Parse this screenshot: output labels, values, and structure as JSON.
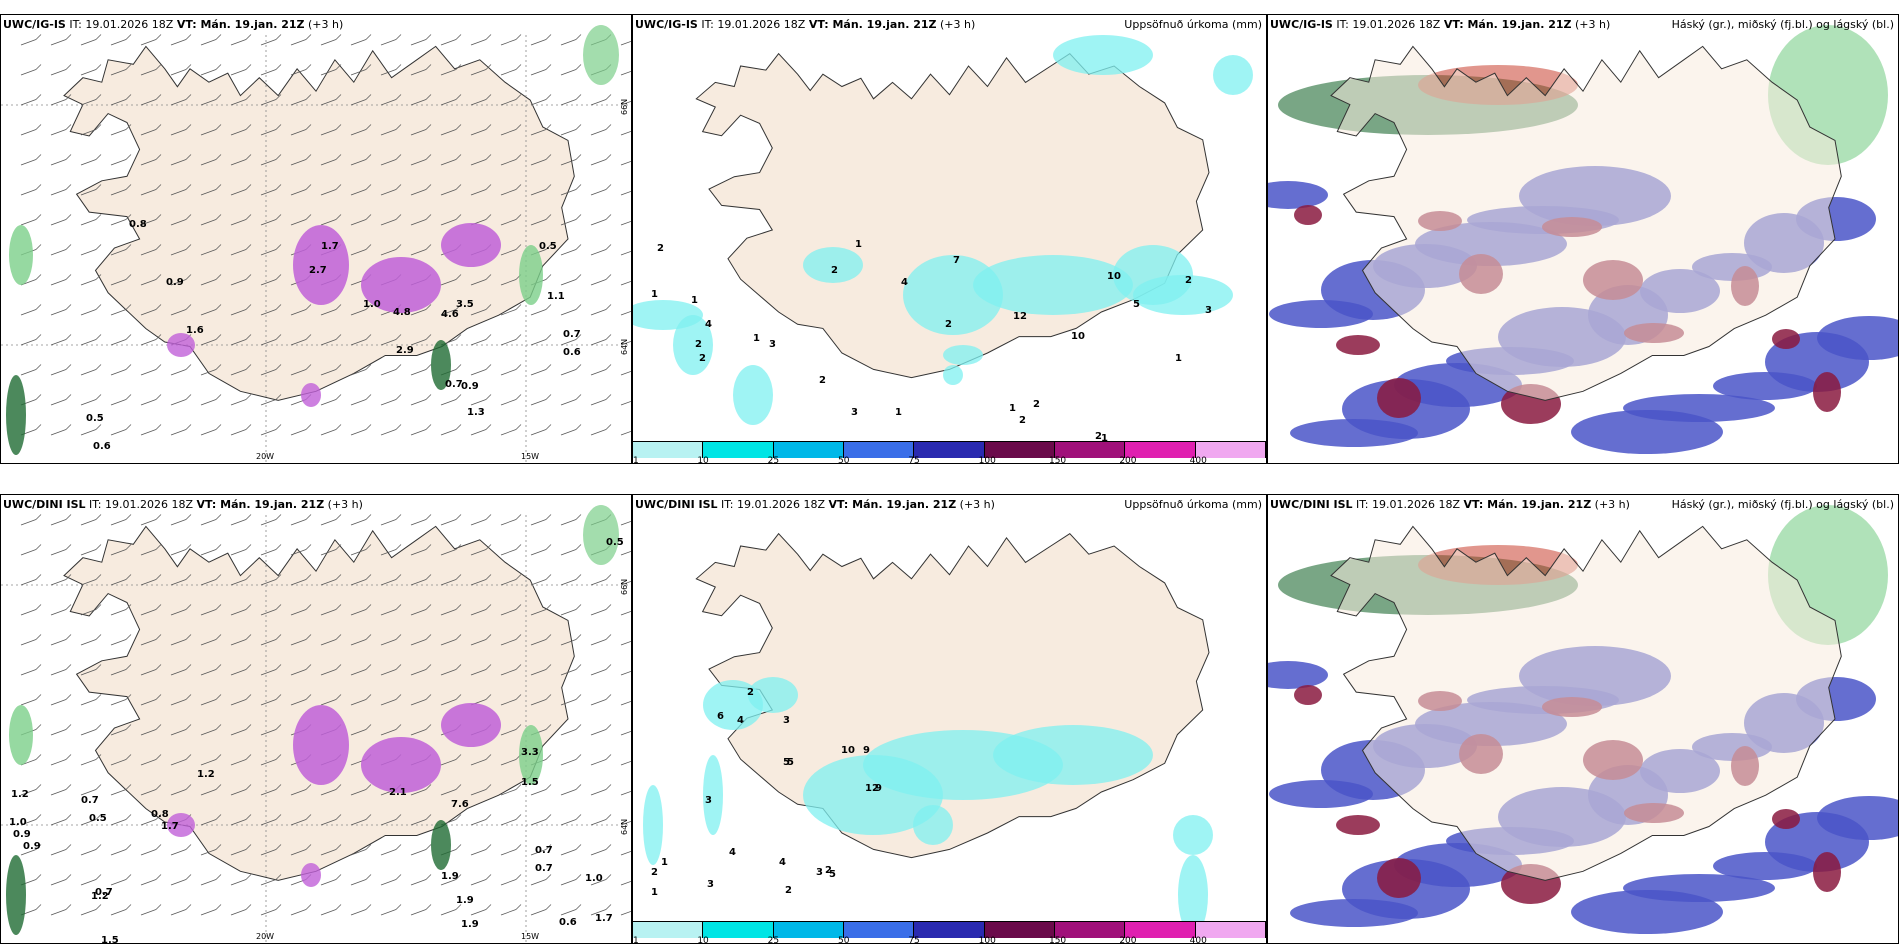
{
  "panels": {
    "top_left": {
      "model": "UWC/IG-IS",
      "it_label": "IT: 19.01.2026 18Z",
      "vt_label": "VT: Mán. 19.jan. 21Z",
      "lead": "(+3 h)",
      "values": [
        "0.8",
        "1.7",
        "2.7",
        "0.9",
        "1.0",
        "1.6",
        "4.8",
        "4.6",
        "3.5",
        "0.5",
        "1.1",
        "0.7",
        "0.6",
        "0.5",
        "0.6",
        "0.7",
        "0.9",
        "1.3",
        "2.9"
      ],
      "lon_labels": [
        "20W",
        "15W"
      ],
      "lat_labels": [
        "66N",
        "64N"
      ]
    },
    "top_mid": {
      "model": "UWC/IG-IS",
      "it_label": "IT: 19.01.2026 18Z",
      "vt_label": "VT: Mán. 19.jan. 21Z",
      "lead": "(+3 h)",
      "title_right": "Uppsöfnuð úrkoma (mm)",
      "values": [
        "2",
        "1",
        "1",
        "4",
        "2",
        "2",
        "1",
        "3",
        "2",
        "3",
        "1",
        "2",
        "1",
        "7",
        "4",
        "2",
        "10",
        "12",
        "10",
        "5",
        "2",
        "3",
        "1",
        "2",
        "2",
        "1",
        "2",
        "1"
      ]
    },
    "top_right": {
      "model": "UWC/IG-IS",
      "it_label": "IT: 19.01.2026 18Z",
      "vt_label": "VT: Mán. 19.jan. 21Z",
      "lead": "(+3 h)",
      "title_right": "Háský (gr.), miðský (fj.bl.) og lágský (bl.)"
    },
    "bottom_left": {
      "model": "UWC/DINI ISL",
      "it_label": "IT: 19.01.2026 18Z",
      "vt_label": "VT: Mán. 19.jan. 21Z",
      "lead": "(+3 h)",
      "values": [
        "0.5",
        "1.2",
        "1.0",
        "0.9",
        "0.9",
        "0.7",
        "0.5",
        "0.8",
        "1.7",
        "1.2",
        "2.1",
        "7.6",
        "3.3",
        "1.5",
        "0.7",
        "0.7",
        "0.7",
        "1.2",
        "1.9",
        "1.9",
        "1.9",
        "1.0",
        "0.6",
        "1.7",
        "1.5"
      ],
      "lon_labels": [
        "20W",
        "15W"
      ],
      "lat_labels": [
        "66N",
        "64N"
      ]
    },
    "bottom_mid": {
      "model": "UWC/DINI ISL",
      "it_label": "IT: 19.01.2026 18Z",
      "vt_label": "VT: Mán. 19.jan. 21Z",
      "lead": "(+3 h)",
      "title_right": "Uppsöfnuð úrkoma (mm)",
      "values": [
        "3",
        "6",
        "4",
        "2",
        "3",
        "5",
        "10",
        "9",
        "12",
        "5",
        "9",
        "2",
        "1",
        "2",
        "1",
        "3",
        "4",
        "4",
        "3",
        "2",
        "5",
        "2"
      ]
    },
    "bottom_right": {
      "model": "UWC/DINI ISL",
      "it_label": "IT: 19.01.2026 18Z",
      "vt_label": "VT: Mán. 19.jan. 21Z",
      "lead": "(+3 h)",
      "title_right": "Háský (gr.), miðský (fj.bl.) og lágský (bl.)"
    }
  },
  "legend": {
    "ticks": [
      "1",
      "10",
      "25",
      "50",
      "75",
      "100",
      "150",
      "200",
      "400"
    ],
    "colors": [
      "#b8f2f2",
      "#00e5e5",
      "#00b8e8",
      "#3a6ee8",
      "#2a2ab0",
      "#6a0a4a",
      "#a0107a",
      "#e020b0",
      "#f0a8f0"
    ]
  },
  "colors": {
    "land": "#f7ebdf",
    "coast": "#333333",
    "precip": "#7ff0f0",
    "purple": "#c060d8",
    "green": "#7ccf8a",
    "darkgreen": "#1f6b33",
    "blue": "#4a55c8",
    "maroon": "#8a1a40",
    "red": "#c84030"
  }
}
